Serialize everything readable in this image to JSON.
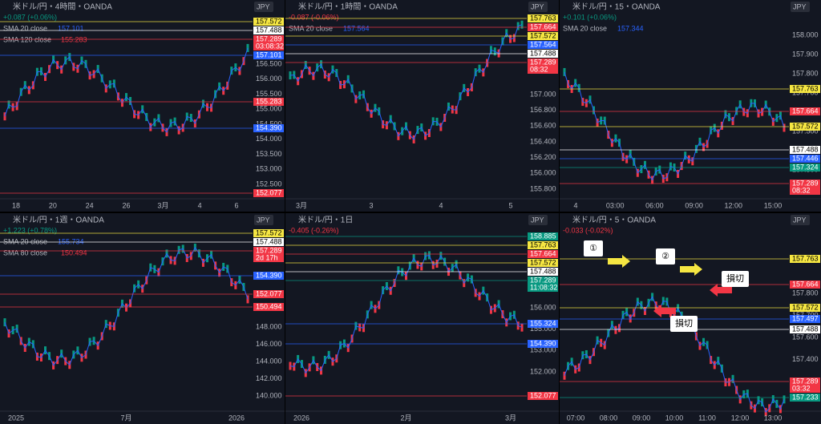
{
  "panels": [
    {
      "title": "米ドル/円・4時間・OANDA",
      "change": "+0.087 (+0.06%)",
      "currency": "JPY",
      "indicators": [
        {
          "label": "SMA 20 close",
          "value": "157.101",
          "color": "#2962ff"
        },
        {
          "label": "SMA 120 close",
          "value": "155.283",
          "color": "#f23645"
        }
      ],
      "price_tags": [
        {
          "text": "157.572",
          "color": "#f5e642"
        },
        {
          "text": "157.488",
          "color": "#ffffff"
        },
        {
          "text": "157.289",
          "sub": "03:08:32",
          "color": "#f23645"
        },
        {
          "text": "157.101",
          "color": "#2962ff"
        },
        {
          "text": "155.283",
          "color": "#f23645"
        },
        {
          "text": "154.390",
          "color": "#2962ff"
        },
        {
          "text": "152.077",
          "color": "#f23645"
        }
      ],
      "y_labels": [
        "156.500",
        "156.000",
        "155.500",
        "155.000",
        "154.500",
        "154.000",
        "153.500",
        "153.000",
        "152.500"
      ],
      "x_labels": [
        "18",
        "20",
        "24",
        "26",
        "3月",
        "4",
        "6"
      ]
    },
    {
      "title": "米ドル/円・1時間・OANDA",
      "change": "-0.087 (-0.06%)",
      "currency": "JPY",
      "indicators": [
        {
          "label": "SMA 20 close",
          "value": "157.564",
          "color": "#2962ff"
        }
      ],
      "price_tags": [
        {
          "text": "157.763",
          "color": "#f5e642"
        },
        {
          "text": "157.664",
          "color": "#f23645"
        },
        {
          "text": "157.572",
          "color": "#f5e642"
        },
        {
          "text": "157.564",
          "color": "#2962ff"
        },
        {
          "text": "157.488",
          "color": "#ffffff"
        },
        {
          "text": "157.289",
          "sub": "08:32",
          "color": "#f23645"
        }
      ],
      "y_labels": [
        "157.000",
        "156.800",
        "156.600",
        "156.400",
        "156.200",
        "156.000",
        "155.800"
      ],
      "x_labels": [
        "3月",
        "3",
        "4",
        "5"
      ]
    },
    {
      "title": "米ドル/円・15・OANDA",
      "change": "+0.101 (+0.06%)",
      "currency": "JPY",
      "indicators": [
        {
          "label": "SMA 20 close",
          "value": "157.344",
          "color": "#2962ff"
        }
      ],
      "price_tags": [
        {
          "text": "157.763",
          "color": "#f5e642"
        },
        {
          "text": "157.664",
          "color": "#f23645"
        },
        {
          "text": "157.572",
          "color": "#f5e642"
        },
        {
          "text": "157.488",
          "color": "#ffffff"
        },
        {
          "text": "157.446",
          "color": "#2962ff"
        },
        {
          "text": "157.324",
          "color": "#089981"
        },
        {
          "text": "157.289",
          "sub": "08:32",
          "color": "#f23645"
        }
      ],
      "y_labels": [
        "158.000",
        "157.900",
        "157.800",
        "157.700",
        "157.600",
        "157.500",
        "157.400",
        "157.300"
      ],
      "x_labels": [
        "4",
        "03:00",
        "06:00",
        "09:00",
        "12:00",
        "15:00"
      ]
    },
    {
      "title": "米ドル/円・1週・OANDA",
      "change": "+1.223 (+0.78%)",
      "currency": "JPY",
      "indicators": [
        {
          "label": "SMA 20 close",
          "value": "155.734",
          "color": "#2962ff"
        },
        {
          "label": "SMA 80 close",
          "value": "150.494",
          "color": "#f23645"
        }
      ],
      "price_tags": [
        {
          "text": "157.572",
          "color": "#f5e642"
        },
        {
          "text": "157.488",
          "color": "#ffffff"
        },
        {
          "text": "157.289",
          "sub": "2d 17h",
          "color": "#f23645"
        },
        {
          "text": "154.390",
          "color": "#2962ff"
        },
        {
          "text": "152.077",
          "color": "#f23645"
        },
        {
          "text": "150.494",
          "color": "#f23645"
        }
      ],
      "y_labels": [
        "148.000",
        "146.000",
        "144.000",
        "142.000",
        "140.000"
      ],
      "x_labels": [
        "2025",
        "7月",
        "2026"
      ]
    },
    {
      "title": "米ドル/円・1日",
      "change": "-0.405 (-0.26%)",
      "currency": "JPY",
      "indicators": [],
      "price_tags": [
        {
          "text": "158.885",
          "color": "#089981"
        },
        {
          "text": "157.763",
          "color": "#f5e642"
        },
        {
          "text": "157.664",
          "color": "#f23645"
        },
        {
          "text": "157.572",
          "color": "#f5e642"
        },
        {
          "text": "157.488",
          "color": "#ffffff"
        },
        {
          "text": "157.289",
          "sub": "11:08:32",
          "color": "#089981"
        },
        {
          "text": "155.324",
          "color": "#2962ff"
        },
        {
          "text": "154.390",
          "color": "#2962ff"
        },
        {
          "text": "152.077",
          "color": "#f23645"
        }
      ],
      "y_labels": [
        "156.000",
        "155.000",
        "153.000",
        "152.000"
      ],
      "x_labels": [
        "2026",
        "2月",
        "3月"
      ]
    },
    {
      "title": "米ドル/円・5・OANDA",
      "change": "-0.033 (-0.02%)",
      "currency": "JPY",
      "indicators": [],
      "price_tags": [
        {
          "text": "157.763",
          "color": "#f5e642"
        },
        {
          "text": "157.664",
          "color": "#f23645"
        },
        {
          "text": "157.572",
          "color": "#f5e642"
        },
        {
          "text": "157.497",
          "color": "#2962ff"
        },
        {
          "text": "157.488",
          "color": "#ffffff"
        },
        {
          "text": "157.289",
          "sub": "03:32",
          "color": "#f23645"
        },
        {
          "text": "157.233",
          "color": "#089981"
        }
      ],
      "y_labels": [
        "157.800",
        "157.700",
        "157.600",
        "157.400",
        "157.320"
      ],
      "x_labels": [
        "07:00",
        "08:00",
        "09:00",
        "10:00",
        "11:00",
        "12:00",
        "13:00"
      ],
      "annotations": [
        "①",
        "②",
        "損切",
        "損切"
      ]
    }
  ]
}
